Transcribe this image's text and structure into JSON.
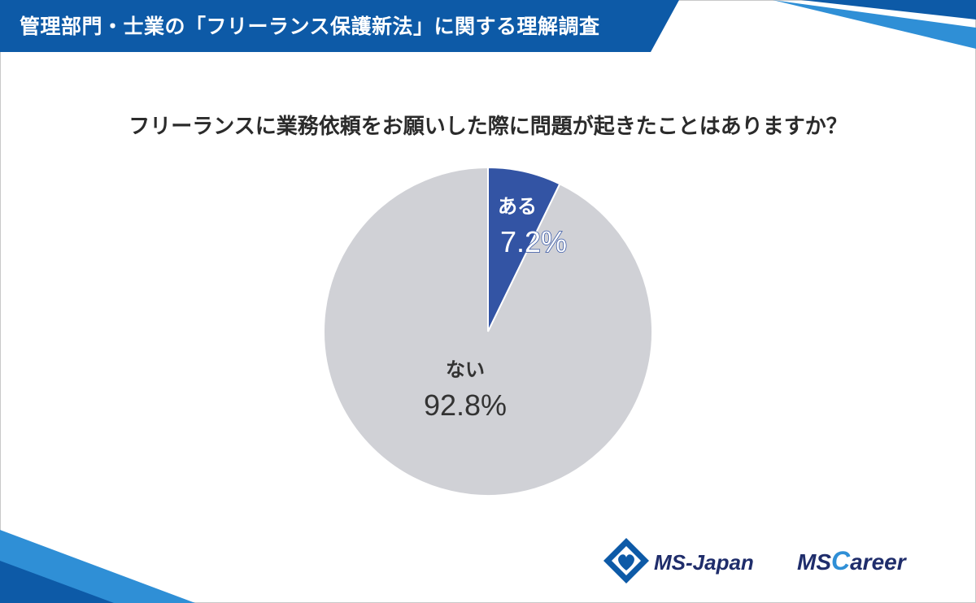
{
  "header": {
    "title": "管理部門・士業の「フリーランス保護新法」に関する理解調査"
  },
  "question": "フリーランスに業務依頼をお願いした際に問題が起きたことはありますか？",
  "colors": {
    "header_blue": "#0d5aa7",
    "accent_light_blue": "#2f8fd6",
    "slice_aru": "#3354a4",
    "slice_nai": "#d0d1d6",
    "text_dark": "#333333"
  },
  "chart_data": {
    "type": "pie",
    "slices": [
      {
        "label": "ある",
        "value": 7.2,
        "display": "7.2%"
      },
      {
        "label": "ない",
        "value": 92.8,
        "display": "92.8%"
      }
    ],
    "start_angle": "12 o'clock",
    "direction": "clockwise",
    "legend": "none"
  },
  "logos": {
    "ms_japan": "MS-Japan",
    "ms_career_ms": "MS",
    "ms_career_c": "C",
    "ms_career_rest": "areer"
  }
}
